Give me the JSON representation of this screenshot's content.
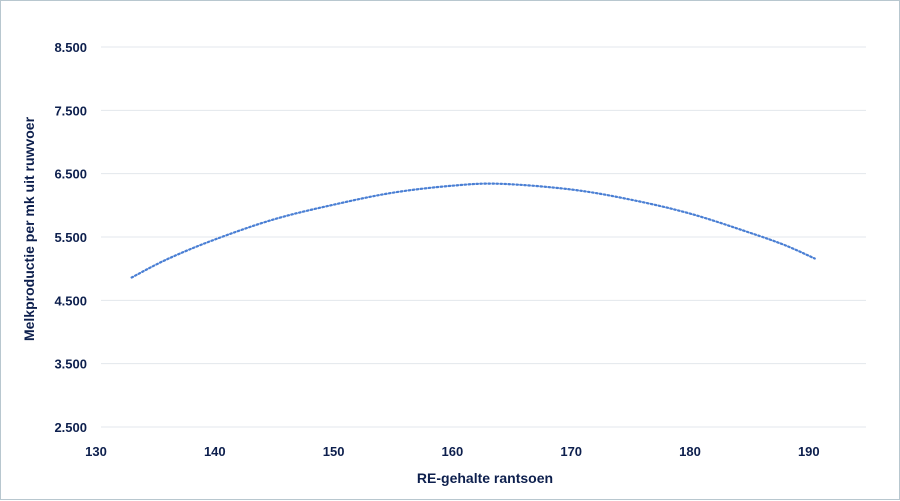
{
  "chart_data": {
    "type": "line",
    "title": "",
    "xlabel": "RE-gehalte rantsoen",
    "ylabel": "Melkproductie per mk uit ruwvoer",
    "xlim": [
      130,
      195
    ],
    "ylim": [
      2500,
      8500
    ],
    "x_ticks": [
      130,
      140,
      150,
      160,
      170,
      180,
      190
    ],
    "x_tick_labels": [
      "130",
      "140",
      "150",
      "160",
      "170",
      "180",
      "190"
    ],
    "y_ticks": [
      2500,
      3500,
      4500,
      5500,
      6500,
      7500,
      8500
    ],
    "y_tick_labels": [
      "2.500",
      "3.500",
      "4.500",
      "5.500",
      "6.500",
      "7.500",
      "8.500"
    ],
    "grid": "horizontal",
    "line_style": "dotted",
    "color": "#4a7fd4",
    "series": [
      {
        "x": [
          133,
          136,
          140,
          145,
          150,
          155,
          160,
          164,
          170,
          175,
          180,
          185,
          188,
          190.5
        ],
        "values": [
          4860,
          5150,
          5460,
          5780,
          6010,
          6200,
          6310,
          6340,
          6250,
          6090,
          5870,
          5570,
          5370,
          5160
        ]
      }
    ]
  }
}
